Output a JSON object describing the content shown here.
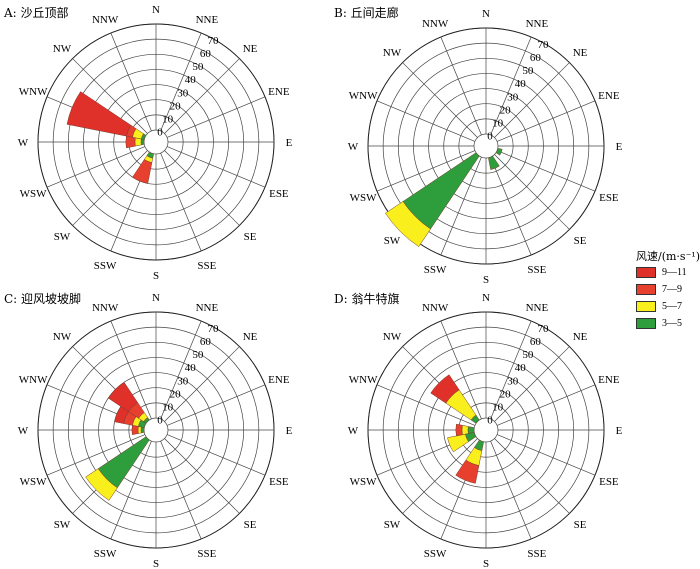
{
  "directions": [
    "N",
    "NNE",
    "NE",
    "ENE",
    "E",
    "ESE",
    "SE",
    "SSE",
    "S",
    "SSW",
    "SW",
    "WSW",
    "W",
    "WNW",
    "NW",
    "NNW"
  ],
  "radial_ticks": [
    "0",
    "10",
    "20",
    "30",
    "40",
    "50",
    "60",
    "70"
  ],
  "legend": {
    "title": "风速/(m·s⁻¹)",
    "items": [
      {
        "label": "9—11",
        "color": "#e0302a"
      },
      {
        "label": "7—9",
        "color": "#e8402f"
      },
      {
        "label": "5—7",
        "color": "#f8ef1c"
      },
      {
        "label": "3—5",
        "color": "#2e9e3d"
      }
    ]
  },
  "chart_data": [
    {
      "type": "windrose",
      "title": "A: 沙丘顶部",
      "rlim": [
        0,
        70
      ],
      "bins": [
        "3—5",
        "5—7",
        "7—9",
        "9—11"
      ],
      "petals": [
        {
          "dir": "WNW",
          "values": [
            2,
            6,
            4,
            40
          ]
        },
        {
          "dir": "W",
          "values": [
            2,
            4,
            6,
            0
          ]
        },
        {
          "dir": "SSW",
          "values": [
            3,
            3,
            14,
            0
          ]
        }
      ]
    },
    {
      "type": "windrose",
      "title": "B: 丘间走廊",
      "rlim": [
        0,
        70
      ],
      "bins": [
        "3—5",
        "5—7",
        "7—9",
        "9—11"
      ],
      "petals": [
        {
          "dir": "SW",
          "values": [
            58,
            14,
            0,
            0
          ]
        },
        {
          "dir": "SSE",
          "values": [
            8,
            0,
            0,
            0
          ]
        },
        {
          "dir": "ESE",
          "values": [
            3,
            0,
            0,
            0
          ]
        }
      ]
    },
    {
      "type": "windrose",
      "title": "C: 迎风坡坡脚",
      "rlim": [
        0,
        70
      ],
      "bins": [
        "3—5",
        "5—7",
        "7—9",
        "9—11"
      ],
      "petals": [
        {
          "dir": "SW",
          "values": [
            38,
            10,
            0,
            0
          ]
        },
        {
          "dir": "NW",
          "values": [
            2,
            4,
            8,
            16
          ]
        },
        {
          "dir": "WNW",
          "values": [
            4,
            4,
            6,
            6
          ]
        },
        {
          "dir": "W",
          "values": [
            2,
            2,
            4,
            0
          ]
        }
      ]
    },
    {
      "type": "windrose",
      "title": "D: 翁牛特旗",
      "rlim": [
        0,
        70
      ],
      "bins": [
        "3—5",
        "5—7",
        "7—9",
        "9—11"
      ],
      "petals": [
        {
          "dir": "NW",
          "values": [
            4,
            20,
            0,
            12
          ]
        },
        {
          "dir": "SSW",
          "values": [
            6,
            10,
            12,
            0
          ]
        },
        {
          "dir": "WSW",
          "values": [
            6,
            12,
            0,
            0
          ]
        },
        {
          "dir": "W",
          "values": [
            4,
            4,
            4,
            0
          ]
        }
      ]
    }
  ]
}
